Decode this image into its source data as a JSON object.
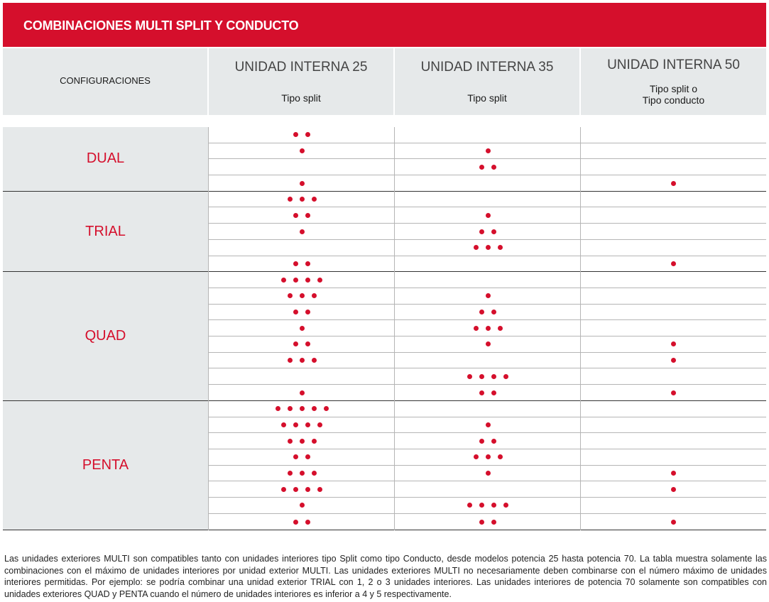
{
  "title": "COMBINACIONES MULTI SPLIT Y CONDUCTO",
  "header": {
    "config_label": "CONFIGURACIONES",
    "columns": [
      {
        "name": "UNIDAD INTERNA 25",
        "type": "Tipo split"
      },
      {
        "name": "UNIDAD INTERNA 35",
        "type": "Tipo split"
      },
      {
        "name": "UNIDAD INTERNA 50",
        "type": "Tipo split o\nTipo conducto"
      }
    ]
  },
  "colors": {
    "accent": "#d50f2c",
    "header_bg": "#e6e9ea"
  },
  "groups": [
    {
      "name": "DUAL",
      "rows": [
        [
          2,
          0,
          0
        ],
        [
          1,
          1,
          0
        ],
        [
          0,
          2,
          0
        ],
        [
          1,
          0,
          1
        ]
      ]
    },
    {
      "name": "TRIAL",
      "rows": [
        [
          3,
          0,
          0
        ],
        [
          2,
          1,
          0
        ],
        [
          1,
          2,
          0
        ],
        [
          0,
          3,
          0
        ],
        [
          2,
          0,
          1
        ]
      ]
    },
    {
      "name": "QUAD",
      "rows": [
        [
          4,
          0,
          0
        ],
        [
          3,
          1,
          0
        ],
        [
          2,
          2,
          0
        ],
        [
          1,
          3,
          0
        ],
        [
          2,
          1,
          1
        ],
        [
          3,
          0,
          1
        ],
        [
          0,
          4,
          0
        ],
        [
          1,
          2,
          1
        ]
      ]
    },
    {
      "name": "PENTA",
      "rows": [
        [
          5,
          0,
          0
        ],
        [
          4,
          1,
          0
        ],
        [
          3,
          2,
          0
        ],
        [
          2,
          3,
          0
        ],
        [
          3,
          1,
          1
        ],
        [
          4,
          0,
          1
        ],
        [
          1,
          4,
          0
        ],
        [
          2,
          2,
          1
        ]
      ]
    }
  ],
  "footnote": "Las unidades exteriores MULTI son compatibles tanto con unidades interiores tipo Split como tipo Conducto, desde modelos potencia 25 hasta potencia 70. La tabla muestra solamente las combinaciones con el máximo de unidades interiores por unidad exterior MULTI. Las unidades exteriores MULTI no necesariamente deben combinarse con el número máximo de unidades interiores permitidas. Por ejemplo: se podría combinar una unidad exterior TRIAL con 1, 2 o 3 unidades interiores. Las unidades interiores de potencia 70 solamente son compatibles con unidades exteriores QUAD y PENTA cuando el número de unidades interiores es inferior a 4 y 5 respectivamente."
}
